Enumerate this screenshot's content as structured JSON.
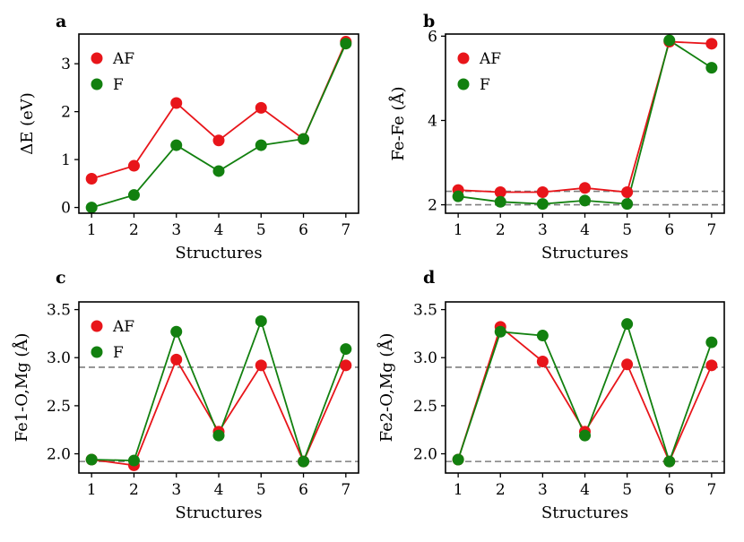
{
  "figure": {
    "panel_count": 4
  },
  "colors": {
    "af": "#e8151a",
    "f": "#12800f",
    "ref_line": "#7f7f7f"
  },
  "chart_data": [
    {
      "type": "line",
      "panel_label": "a",
      "xlabel": "Structures",
      "ylabel": "ΔE (eV)",
      "x": [
        1,
        2,
        3,
        4,
        5,
        6,
        7
      ],
      "xticks": [
        1,
        2,
        3,
        4,
        5,
        6,
        7
      ],
      "xlim": [
        0.7,
        7.3
      ],
      "ylim": [
        -0.12,
        3.62
      ],
      "yticks": [
        0,
        1,
        2,
        3
      ],
      "ytick_labels": [
        "0",
        "1",
        "2",
        "3"
      ],
      "hlines": [],
      "legend": {
        "position": "top-left",
        "entries": [
          "AF",
          "F"
        ]
      },
      "series": [
        {
          "name": "AF",
          "color": "#e8151a",
          "values": [
            0.6,
            0.87,
            2.18,
            1.4,
            2.08,
            1.43,
            3.46
          ]
        },
        {
          "name": "F",
          "color": "#12800f",
          "values": [
            0.0,
            0.26,
            1.3,
            0.76,
            1.3,
            1.43,
            3.42
          ]
        }
      ]
    },
    {
      "type": "line",
      "panel_label": "b",
      "xlabel": "Structures",
      "ylabel": "Fe-Fe (Å)",
      "x": [
        1,
        2,
        3,
        4,
        5,
        6,
        7
      ],
      "xticks": [
        1,
        2,
        3,
        4,
        5,
        6,
        7
      ],
      "xlim": [
        0.7,
        7.3
      ],
      "ylim": [
        1.8,
        6.05
      ],
      "yticks": [
        2,
        4,
        6
      ],
      "ytick_labels": [
        "2",
        "4",
        "6"
      ],
      "hlines": [
        2.0,
        2.32
      ],
      "legend": {
        "position": "top-left",
        "entries": [
          "AF",
          "F"
        ]
      },
      "series": [
        {
          "name": "AF",
          "color": "#e8151a",
          "values": [
            2.35,
            2.3,
            2.3,
            2.4,
            2.3,
            5.87,
            5.82
          ]
        },
        {
          "name": "F",
          "color": "#12800f",
          "values": [
            2.2,
            2.07,
            2.02,
            2.1,
            2.02,
            5.9,
            5.25
          ]
        }
      ]
    },
    {
      "type": "line",
      "panel_label": "c",
      "xlabel": "Structures",
      "ylabel": "Fe1-O,Mg (Å)",
      "x": [
        1,
        2,
        3,
        4,
        5,
        6,
        7
      ],
      "xticks": [
        1,
        2,
        3,
        4,
        5,
        6,
        7
      ],
      "xlim": [
        0.7,
        7.3
      ],
      "ylim": [
        1.8,
        3.58
      ],
      "yticks": [
        2.0,
        2.5,
        3.0,
        3.5
      ],
      "ytick_labels": [
        "2.0",
        "2.5",
        "3.0",
        "3.5"
      ],
      "hlines": [
        1.92,
        2.9
      ],
      "legend": {
        "position": "top-left",
        "entries": [
          "AF",
          "F"
        ]
      },
      "series": [
        {
          "name": "AF",
          "color": "#e8151a",
          "values": [
            1.94,
            1.88,
            2.98,
            2.23,
            2.92,
            1.92,
            2.92
          ]
        },
        {
          "name": "F",
          "color": "#12800f",
          "values": [
            1.94,
            1.93,
            3.27,
            2.19,
            3.38,
            1.92,
            3.09
          ]
        }
      ]
    },
    {
      "type": "line",
      "panel_label": "d",
      "xlabel": "Structures",
      "ylabel": "Fe2-O,Mg (Å)",
      "x": [
        1,
        2,
        3,
        4,
        5,
        6,
        7
      ],
      "xticks": [
        1,
        2,
        3,
        4,
        5,
        6,
        7
      ],
      "xlim": [
        0.7,
        7.3
      ],
      "ylim": [
        1.8,
        3.58
      ],
      "yticks": [
        2.0,
        2.5,
        3.0,
        3.5
      ],
      "ytick_labels": [
        "2.0",
        "2.5",
        "3.0",
        "3.5"
      ],
      "hlines": [
        1.92,
        2.9
      ],
      "legend": null,
      "series": [
        {
          "name": "AF",
          "color": "#e8151a",
          "values": [
            1.94,
            3.32,
            2.96,
            2.23,
            2.93,
            1.92,
            2.92
          ]
        },
        {
          "name": "F",
          "color": "#12800f",
          "values": [
            1.94,
            3.27,
            3.23,
            2.19,
            3.35,
            1.92,
            3.16
          ]
        }
      ]
    }
  ]
}
